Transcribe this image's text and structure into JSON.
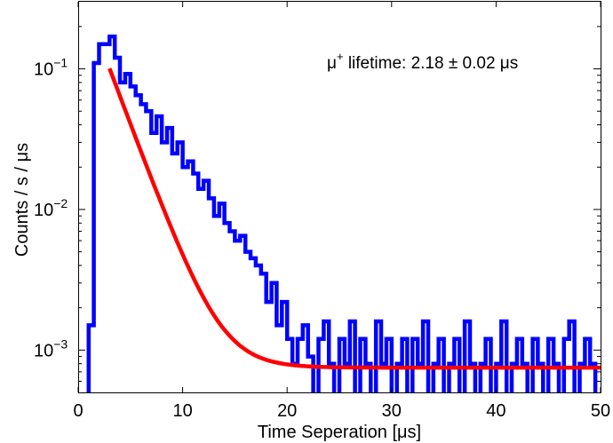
{
  "chart_data": {
    "type": "line",
    "xlabel": "Time Seperation [μs]",
    "ylabel": "Counts / s / μs",
    "xlim": [
      0,
      50
    ],
    "ylim": [
      0.0005,
      0.3
    ],
    "yscale": "log",
    "grid": false,
    "x_ticks": [
      0,
      10,
      20,
      30,
      40,
      50
    ],
    "x_tick_labels": [
      "0",
      "10",
      "20",
      "30",
      "40",
      "50"
    ],
    "y_ticks": [
      0.001,
      0.01,
      0.1
    ],
    "y_tick_labels": [
      {
        "base": "10",
        "exp": "−3"
      },
      {
        "base": "10",
        "exp": "−2"
      },
      {
        "base": "10",
        "exp": "−1"
      }
    ],
    "annotation": {
      "mu": "μ",
      "sup": "+",
      "text": " lifetime: 2.18 ± 0.02 ",
      "unit": "μs"
    },
    "series": [
      {
        "kind": "histogram",
        "color": "#0000ff",
        "bin_width": 0.5,
        "x_start": 0.5,
        "values": [
          0.0004,
          0.0015,
          0.11,
          0.15,
          0.15,
          0.17,
          0.12,
          0.08,
          0.092,
          0.075,
          0.065,
          0.056,
          0.05,
          0.035,
          0.046,
          0.03,
          0.038,
          0.025,
          0.03,
          0.02,
          0.022,
          0.018,
          0.014,
          0.016,
          0.012,
          0.009,
          0.011,
          0.008,
          0.007,
          0.006,
          0.0065,
          0.005,
          0.0045,
          0.004,
          0.0035,
          0.0022,
          0.003,
          0.0015,
          0.0022,
          0.0012,
          0.0008,
          0.0012,
          0.0015,
          0.0009,
          0.0004,
          0.0012,
          0.0016,
          0.0008,
          0.0004,
          0.0012,
          0.0008,
          0.0016,
          0.0004,
          0.0012,
          0.0008,
          0.0004,
          0.0016,
          0.0008,
          0.0012,
          0.0004,
          0.0008,
          0.0012,
          0.0004,
          0.0012,
          0.0008,
          0.0016,
          0.0004,
          0.0008,
          0.0012,
          0.0004,
          0.0008,
          0.0012,
          0.0004,
          0.0016,
          0.0008,
          0.0004,
          0.0008,
          0.0012,
          0.0004,
          0.0008,
          0.0016,
          0.0004,
          0.0008,
          0.0012,
          0.0008,
          0.0004,
          0.0012,
          0.0008,
          0.0004,
          0.0012,
          0.0008,
          0.0004,
          0.0012,
          0.0016,
          0.0004,
          0.0008,
          0.0012,
          0.0008,
          0.0004
        ]
      },
      {
        "kind": "fit",
        "color": "#ff0000",
        "amplitude": 0.1,
        "x0": 3.0,
        "tau": 2.18,
        "background": 0.00075,
        "x_range": [
          3.0,
          50
        ]
      }
    ]
  }
}
